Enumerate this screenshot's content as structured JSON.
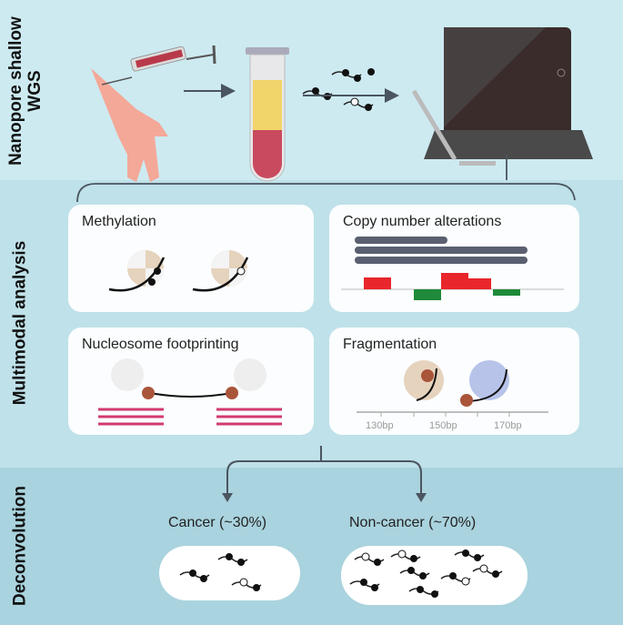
{
  "sections": [
    {
      "label_line1": "Nanopore shallow",
      "label_line2": "WGS"
    },
    {
      "label": "Multimodal analysis"
    },
    {
      "label": "Deconvolution"
    }
  ],
  "analysis_cards": {
    "methylation": "Methylation",
    "cna": "Copy number alterations",
    "nucleosome": "Nucleosome footprinting",
    "fragmentation": "Fragmentation",
    "fragment_ticks": [
      "130bp",
      "150bp",
      "170bp"
    ]
  },
  "deconvolution": {
    "cancer": "Cancer (~30%)",
    "noncancer": "Non-cancer (~70%)"
  },
  "colors": {
    "band_top": "#cdeaf1",
    "band_mid": "#bfe1e9",
    "band_bottom": "#a9d3de",
    "gain": "#e8262b",
    "loss": "#1f8a3a",
    "nucleosome_line": "#d23a6e"
  }
}
